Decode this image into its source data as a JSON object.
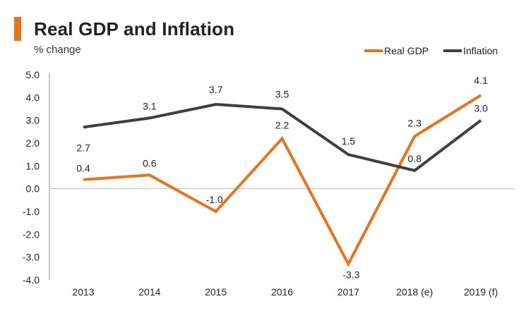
{
  "header": {
    "title": "Real GDP and Inflation",
    "subtitle": "% change"
  },
  "colors": {
    "accent": "#E8731E",
    "gdp": "#E8731E",
    "inflation": "#3F3F3F",
    "zero_line": "#BFBFBF",
    "axis": "#888888"
  },
  "chart_data": {
    "type": "line",
    "title": "Real GDP and Inflation",
    "ylabel": "% change",
    "xlabel": "",
    "categories": [
      "2013",
      "2014",
      "2015",
      "2016",
      "2017",
      "2018 (e)",
      "2019 (f)"
    ],
    "ylim": [
      -4.0,
      5.0
    ],
    "yticks": [
      "5.0",
      "4.0",
      "3.0",
      "2.0",
      "1.0",
      "0.0",
      "-1.0",
      "-2.0",
      "-3.0",
      "-4.0"
    ],
    "ytick_values": [
      5,
      4,
      3,
      2,
      1,
      0,
      -1,
      -2,
      -3,
      -4
    ],
    "legend_position": "top-right",
    "grid": false,
    "series": [
      {
        "name": "Real GDP",
        "key": "gdp",
        "values": [
          0.4,
          0.6,
          -1.0,
          2.2,
          -3.3,
          2.3,
          4.1
        ],
        "labels": [
          "0.4",
          "0.6",
          "-1.0",
          "2.2",
          "-3.3",
          "2.3",
          "4.1"
        ]
      },
      {
        "name": "Inflation",
        "key": "inflation",
        "values": [
          2.7,
          3.1,
          3.7,
          3.5,
          1.5,
          0.8,
          3.0
        ],
        "labels": [
          "2.7",
          "3.1",
          "3.7",
          "3.5",
          "1.5",
          "0.8",
          "3.0"
        ]
      }
    ]
  }
}
